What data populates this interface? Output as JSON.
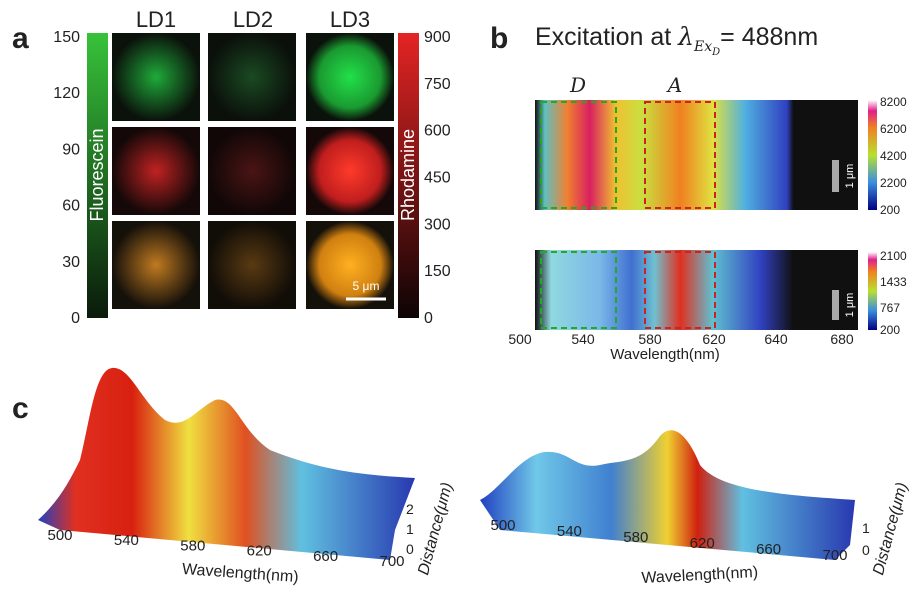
{
  "panel_a": {
    "label": "a",
    "columns": [
      "LD1",
      "LD2",
      "LD3"
    ],
    "left_bar": {
      "label": "Fluorescein",
      "ticks": [
        0,
        30,
        60,
        90,
        120,
        150
      ]
    },
    "right_bar": {
      "label": "Rhodamine",
      "ticks": [
        0,
        150,
        300,
        450,
        600,
        750,
        900
      ]
    },
    "scale_bar": "5 μm"
  },
  "panel_b": {
    "label": "b",
    "title": "Excitation at",
    "symbol": "λ",
    "sub": "Ex",
    "subsub": "D",
    "title_end": "= 488nm",
    "regions": [
      "D",
      "A"
    ],
    "top_bar": {
      "ticks": [
        200,
        2200,
        4200,
        6200,
        8200
      ]
    },
    "bottom_bar": {
      "ticks": [
        200,
        767,
        1433,
        2100
      ]
    },
    "scale_bar": "1 μm",
    "xticks": [
      500,
      540,
      580,
      620,
      640,
      680
    ],
    "xlabel": "Wavelength(nm)"
  },
  "panel_c": {
    "label": "c",
    "left": {
      "xticks": [
        500,
        540,
        580,
        620,
        660,
        700
      ],
      "yticks": [
        0,
        1,
        2
      ],
      "xlabel": "Wavelength(nm)",
      "ylabel": "Distance(μm)"
    },
    "right": {
      "xticks": [
        500,
        540,
        580,
        620,
        660,
        700
      ],
      "yticks": [
        0,
        1
      ],
      "xlabel": "Wavelength(nm)",
      "ylabel": "Distance(μm)"
    }
  }
}
